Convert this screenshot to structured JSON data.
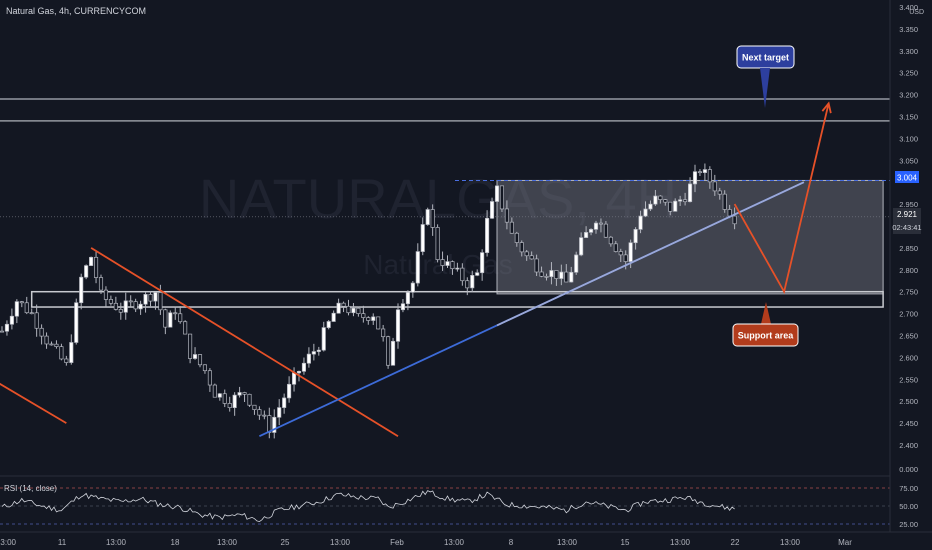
{
  "header": {
    "title": "Natural Gas, 4h, CURRENCYCOM"
  },
  "watermark": {
    "symbol": "NATURALGAS, 4H",
    "name": "Natural Gas"
  },
  "price_axis": {
    "currency": "USD",
    "ticks": [
      "3.400",
      "3.350",
      "3.300",
      "3.250",
      "3.200",
      "3.150",
      "3.100",
      "3.050",
      "3.000",
      "2.950",
      "2.900",
      "2.850",
      "2.800",
      "2.750",
      "2.700",
      "2.650",
      "2.600",
      "2.550",
      "2.500",
      "2.450",
      "2.400",
      "0.000"
    ],
    "level_tag": "3.004",
    "last_price": "2.921",
    "countdown": "02:43:41",
    "hidden_value": "2.915"
  },
  "rsi": {
    "label": "RSI (14, close)",
    "ticks": [
      "75.00",
      "50.00",
      "25.00"
    ]
  },
  "time_axis": [
    "13:00",
    "11",
    "13:00",
    "18",
    "13:00",
    "25",
    "13:00",
    "Feb",
    "13:00",
    "8",
    "13:00",
    "15",
    "13:00",
    "22",
    "13:00",
    "Mar"
  ],
  "annotations": {
    "next_target": "Next target",
    "support": "Support area"
  },
  "colors": {
    "background": "#131722",
    "up": "#ffffff",
    "down": "#131722",
    "wick": "#b2b5be",
    "trend_orange": "#e65128",
    "trend_blue": "#3d6bd8",
    "target_label": "#2d3f9e",
    "support_label": "#b23c1c",
    "level_line": "#4a6ee0"
  },
  "chart_data": {
    "type": "candlestick",
    "symbol": "Natural Gas",
    "interval": "4h",
    "ylim": [
      2.4,
      3.4
    ],
    "rsi_ylim": [
      25,
      75
    ],
    "levels": {
      "resistance_upper": 3.19,
      "resistance_lower": 3.14,
      "dashed": 3.004,
      "last": 2.921
    },
    "zones": {
      "consolidation_box": {
        "from_bar": 100,
        "to_bar": 178,
        "high": 3.004,
        "low": 2.745
      },
      "support_box": {
        "from_bar": 6,
        "to_bar": 178,
        "high": 2.75,
        "low": 2.715
      }
    },
    "trend_lines": {
      "down_left": {
        "from": [
          -2,
          2.55
        ],
        "to": [
          13,
          2.45
        ]
      },
      "down_main": {
        "from": [
          18,
          2.85
        ],
        "to": [
          80,
          2.42
        ]
      },
      "up_main": {
        "from": [
          52,
          2.42
        ],
        "to": [
          162,
          3.0
        ]
      }
    },
    "projection": {
      "points": [
        [
          148,
          2.95
        ],
        [
          158,
          2.75
        ],
        [
          167,
          3.18
        ]
      ]
    },
    "anchors": [
      [
        0,
        2.66
      ],
      [
        3,
        2.73
      ],
      [
        6,
        2.7
      ],
      [
        9,
        2.64
      ],
      [
        13,
        2.58
      ],
      [
        16,
        2.78
      ],
      [
        18,
        2.83
      ],
      [
        20,
        2.74
      ],
      [
        24,
        2.71
      ],
      [
        28,
        2.73
      ],
      [
        31,
        2.75
      ],
      [
        33,
        2.67
      ],
      [
        35,
        2.71
      ],
      [
        38,
        2.61
      ],
      [
        41,
        2.57
      ],
      [
        43,
        2.52
      ],
      [
        46,
        2.5
      ],
      [
        49,
        2.52
      ],
      [
        52,
        2.47
      ],
      [
        54,
        2.44
      ],
      [
        57,
        2.51
      ],
      [
        60,
        2.57
      ],
      [
        64,
        2.63
      ],
      [
        67,
        2.7
      ],
      [
        69,
        2.72
      ],
      [
        72,
        2.69
      ],
      [
        75,
        2.7
      ],
      [
        77,
        2.64
      ],
      [
        78,
        2.57
      ],
      [
        80,
        2.72
      ],
      [
        83,
        2.77
      ],
      [
        86,
        2.95
      ],
      [
        88,
        2.83
      ],
      [
        91,
        2.8
      ],
      [
        94,
        2.77
      ],
      [
        96,
        2.79
      ],
      [
        98,
        2.91
      ],
      [
        100,
        2.98
      ],
      [
        103,
        2.88
      ],
      [
        106,
        2.83
      ],
      [
        109,
        2.8
      ],
      [
        112,
        2.79
      ],
      [
        114,
        2.77
      ],
      [
        117,
        2.86
      ],
      [
        120,
        2.92
      ],
      [
        123,
        2.87
      ],
      [
        126,
        2.82
      ],
      [
        129,
        2.93
      ],
      [
        132,
        2.96
      ],
      [
        135,
        2.94
      ],
      [
        138,
        2.97
      ],
      [
        141,
        3.03
      ],
      [
        144,
        2.99
      ],
      [
        146,
        2.95
      ],
      [
        148,
        2.92
      ]
    ],
    "rsi_anchors": [
      [
        0,
        48
      ],
      [
        4,
        58
      ],
      [
        8,
        50
      ],
      [
        12,
        44
      ],
      [
        16,
        66
      ],
      [
        20,
        60
      ],
      [
        24,
        56
      ],
      [
        28,
        60
      ],
      [
        32,
        52
      ],
      [
        36,
        48
      ],
      [
        40,
        38
      ],
      [
        44,
        34
      ],
      [
        48,
        38
      ],
      [
        52,
        30
      ],
      [
        56,
        44
      ],
      [
        60,
        50
      ],
      [
        64,
        56
      ],
      [
        68,
        66
      ],
      [
        72,
        62
      ],
      [
        76,
        60
      ],
      [
        78,
        48
      ],
      [
        82,
        58
      ],
      [
        86,
        70
      ],
      [
        90,
        60
      ],
      [
        94,
        56
      ],
      [
        98,
        66
      ],
      [
        102,
        52
      ],
      [
        106,
        50
      ],
      [
        110,
        48
      ],
      [
        114,
        44
      ],
      [
        118,
        56
      ],
      [
        122,
        50
      ],
      [
        126,
        44
      ],
      [
        130,
        56
      ],
      [
        134,
        58
      ],
      [
        138,
        62
      ],
      [
        142,
        54
      ],
      [
        146,
        48
      ],
      [
        148,
        46
      ]
    ]
  }
}
